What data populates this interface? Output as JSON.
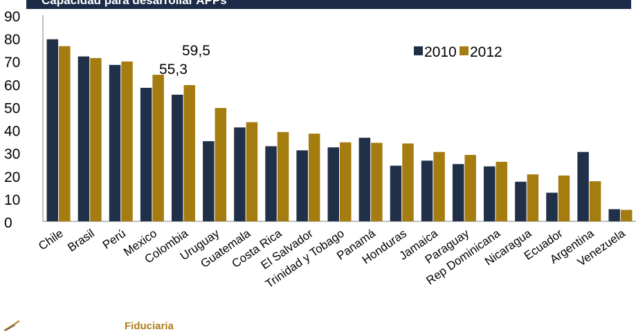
{
  "header": {
    "title": "Capacidad para desarrollar APPs"
  },
  "footer": {
    "brand": "Fiduciaria"
  },
  "chart_data": {
    "type": "bar",
    "categories": [
      "Chile",
      "Brasil",
      "Perú",
      "Mexico",
      "Colombia",
      "Uruguay",
      "Guatemala",
      "Costa Rica",
      "El Salvador",
      "Trinidad y Tobago",
      "Panamá",
      "Honduras",
      "Jamaica",
      "Paraguay",
      "Rep Dominicana",
      "Nicaragua",
      "Ecuador",
      "Argentina",
      "Venezuela"
    ],
    "series": [
      {
        "name": "2010",
        "color": "#1f3048",
        "values": [
          79.5,
          72.0,
          68.3,
          58.3,
          55.3,
          35.0,
          41.0,
          32.8,
          31.0,
          32.3,
          36.5,
          24.3,
          26.5,
          25.0,
          24.0,
          17.3,
          12.5,
          30.3,
          5.3
        ]
      },
      {
        "name": "2012",
        "color": "#a57c10",
        "values": [
          76.5,
          71.3,
          69.8,
          64.0,
          59.5,
          49.5,
          43.3,
          39.0,
          38.3,
          34.5,
          34.3,
          34.0,
          30.3,
          29.0,
          26.0,
          20.5,
          20.0,
          17.5,
          5.0
        ]
      }
    ],
    "annotations": [
      "55,3",
      "59,5"
    ],
    "ylim": [
      0,
      90
    ],
    "yticks": [
      0,
      10,
      20,
      30,
      40,
      50,
      60,
      70,
      80,
      90
    ],
    "legend": "top-right",
    "grid": false
  }
}
